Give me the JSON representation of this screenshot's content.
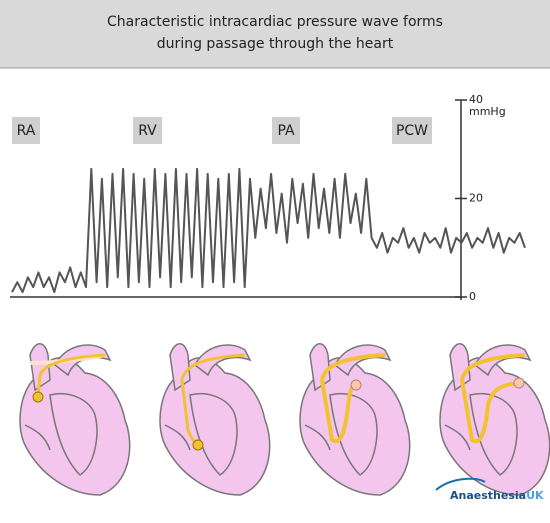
{
  "title": [
    "Characteristic intracardiac pressure wave forms",
    "during passage through the heart"
  ],
  "chart_data": {
    "type": "line",
    "color": "#555555",
    "annotations": [
      "RA",
      "RV",
      "PA",
      "PCW"
    ],
    "unit": "mmHg",
    "ylim": [
      0,
      40
    ],
    "yticks": [
      0,
      20,
      40
    ],
    "values": [
      1,
      3,
      1,
      4,
      2,
      5,
      2,
      4,
      1,
      5,
      3,
      6,
      2,
      5,
      2,
      26,
      3,
      24,
      2,
      25,
      4,
      26,
      2,
      25,
      3,
      24,
      2,
      26,
      4,
      25,
      2,
      26,
      3,
      25,
      4,
      26,
      2,
      25,
      3,
      24,
      2,
      25,
      3,
      26,
      2,
      24,
      12,
      22,
      14,
      25,
      13,
      21,
      11,
      24,
      15,
      23,
      12,
      25,
      14,
      22,
      13,
      24,
      12,
      25,
      15,
      21,
      13,
      24,
      12,
      10,
      13,
      9,
      12,
      11,
      14,
      10,
      12,
      9,
      13,
      11,
      12,
      10,
      14,
      9,
      12,
      11,
      13,
      10,
      12,
      11,
      14,
      10,
      13,
      9,
      12,
      11,
      13,
      10
    ]
  },
  "logo": [
    "Anaesthesia",
    "UK"
  ]
}
